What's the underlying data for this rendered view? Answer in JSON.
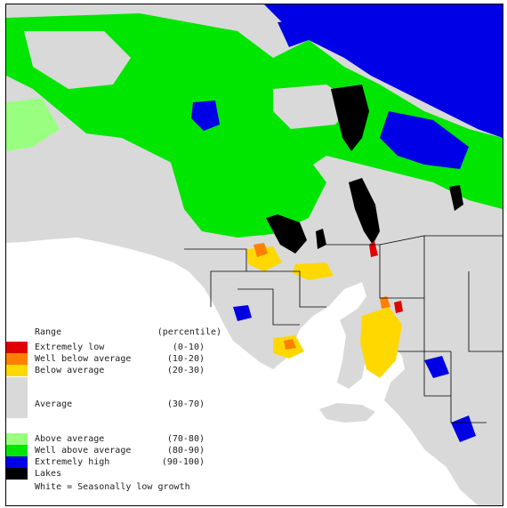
{
  "legend": {
    "header_range": "Range",
    "header_percentile": "(percentile)",
    "items": [
      {
        "label": "Extremely low",
        "range": "(0-10)",
        "color": "#e00000"
      },
      {
        "label": "Well below average",
        "range": "(10-20)",
        "color": "#ff7f00"
      },
      {
        "label": "Below average",
        "range": "(20-30)",
        "color": "#ffd800"
      },
      {
        "label": "Average",
        "range": "(30-70)",
        "color": "#d9d9d9"
      },
      {
        "label": "Above average",
        "range": "(70-80)",
        "color": "#99ff80"
      },
      {
        "label": "Well above average",
        "range": "(80-90)",
        "color": "#00e600"
      },
      {
        "label": "Extremely high",
        "range": "(90-100)",
        "color": "#0000e6"
      },
      {
        "label": "Lakes",
        "range": "",
        "color": "#000000"
      }
    ],
    "note": "White = Seasonally low growth"
  },
  "map_colors": {
    "average": "#d9d9d9",
    "above_average": "#99ff80",
    "well_above_average": "#00e600",
    "extremely_high": "#0000e6",
    "lakes": "#000000",
    "below_average": "#ffd800",
    "well_below_average": "#ff7f00",
    "extremely_low": "#e00000",
    "boundary": "#000000",
    "sea": "#ffffff"
  }
}
